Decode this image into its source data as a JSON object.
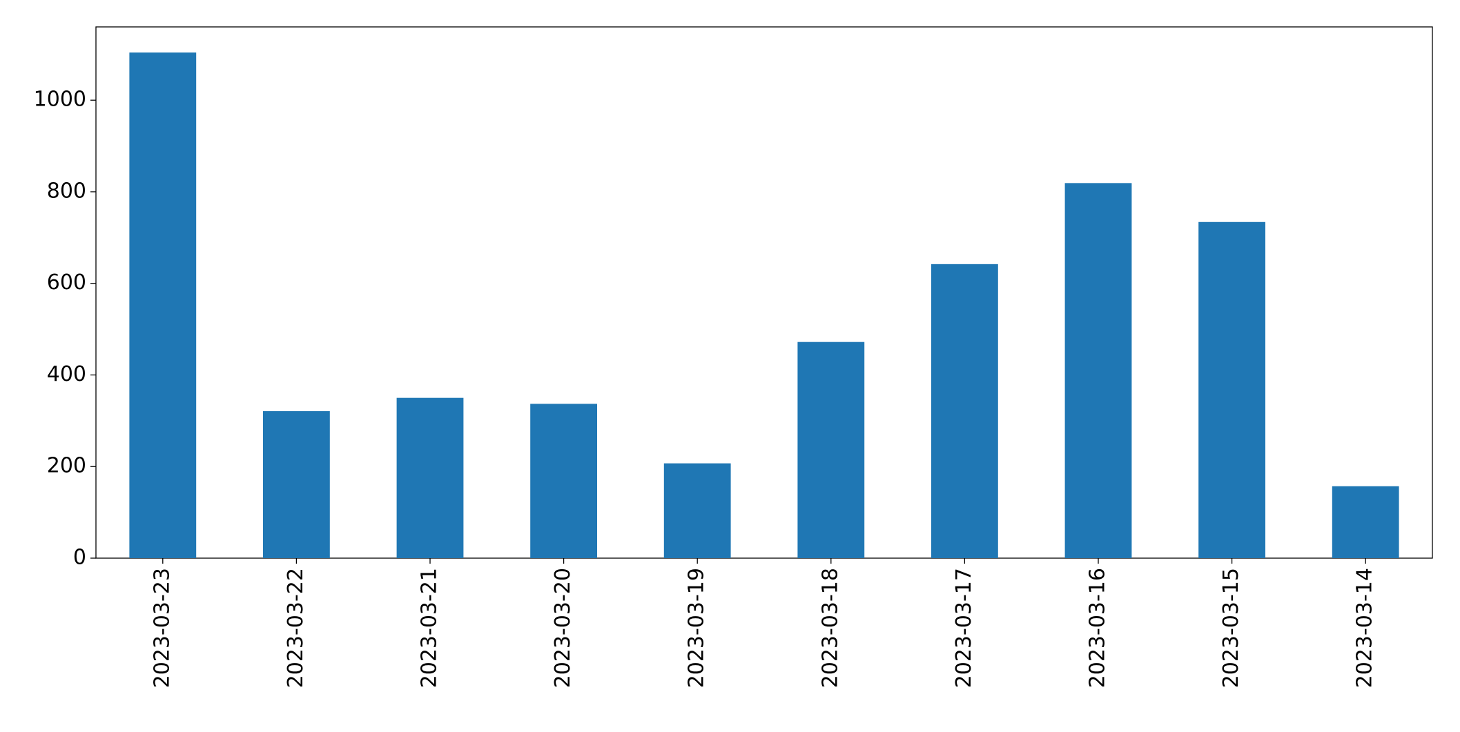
{
  "chart_data": {
    "type": "bar",
    "categories": [
      "2023-03-23",
      "2023-03-22",
      "2023-03-21",
      "2023-03-20",
      "2023-03-19",
      "2023-03-18",
      "2023-03-17",
      "2023-03-16",
      "2023-03-15",
      "2023-03-14"
    ],
    "values": [
      1104,
      321,
      350,
      337,
      207,
      472,
      642,
      819,
      734,
      157
    ],
    "color": "#1f77b4",
    "ylim": [
      0,
      1160
    ],
    "yticks": [
      0,
      200,
      400,
      600,
      800,
      1000
    ],
    "grid": false
  }
}
